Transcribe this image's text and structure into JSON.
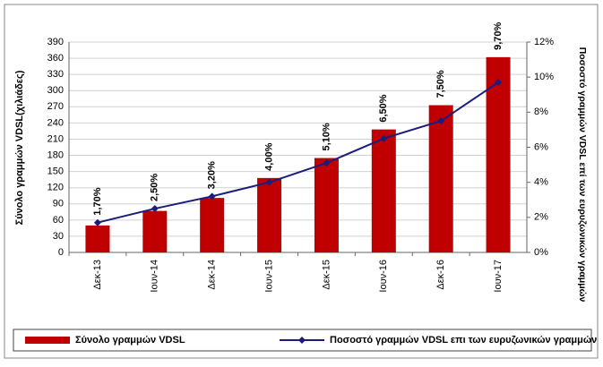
{
  "chart_data": {
    "type": "bar-line",
    "categories": [
      "Δεκ-13",
      "Ιουν-14",
      "Δεκ-14",
      "Ιουν-15",
      "Δεκ-15",
      "Ιουν-16",
      "Δεκ-16",
      "Ιουν-17"
    ],
    "series": [
      {
        "name": "Σύνολο γραμμών VDSL",
        "type": "bar",
        "color": "#c00000",
        "values": [
          50,
          77,
          101,
          138,
          175,
          228,
          273,
          362
        ]
      },
      {
        "name": "Ποσοστό γραμμών VDSL επι των ευρυζωνικών γραμμών",
        "type": "line",
        "axis": "y2",
        "color": "#1c1c7c",
        "values": [
          1.7,
          2.5,
          3.2,
          4.0,
          5.1,
          6.5,
          7.5,
          9.7
        ],
        "value_labels": [
          "1,70%",
          "2,50%",
          "3,20%",
          "4,00%",
          "5,10%",
          "6,50%",
          "7,50%",
          "9,70%"
        ]
      }
    ],
    "ylabel": "Σύνολο γραμμών VDSL(χιλιάδες)",
    "y2label": "Ποσοστό γραμμών VDSL επί των ευρυζωνικών γραμμών",
    "ylim": [
      0,
      390
    ],
    "yticks": [
      0,
      30,
      60,
      90,
      120,
      150,
      180,
      210,
      240,
      270,
      300,
      330,
      360,
      390
    ],
    "y2lim": [
      0,
      12
    ],
    "y2ticks": [
      {
        "value": 0,
        "label": "0%"
      },
      {
        "value": 2,
        "label": "2%"
      },
      {
        "value": 4,
        "label": "4%"
      },
      {
        "value": 6,
        "label": "6%"
      },
      {
        "value": 8,
        "label": "8%"
      },
      {
        "value": 10,
        "label": "10%"
      },
      {
        "value": 12,
        "label": "12%"
      }
    ],
    "grid": true
  }
}
